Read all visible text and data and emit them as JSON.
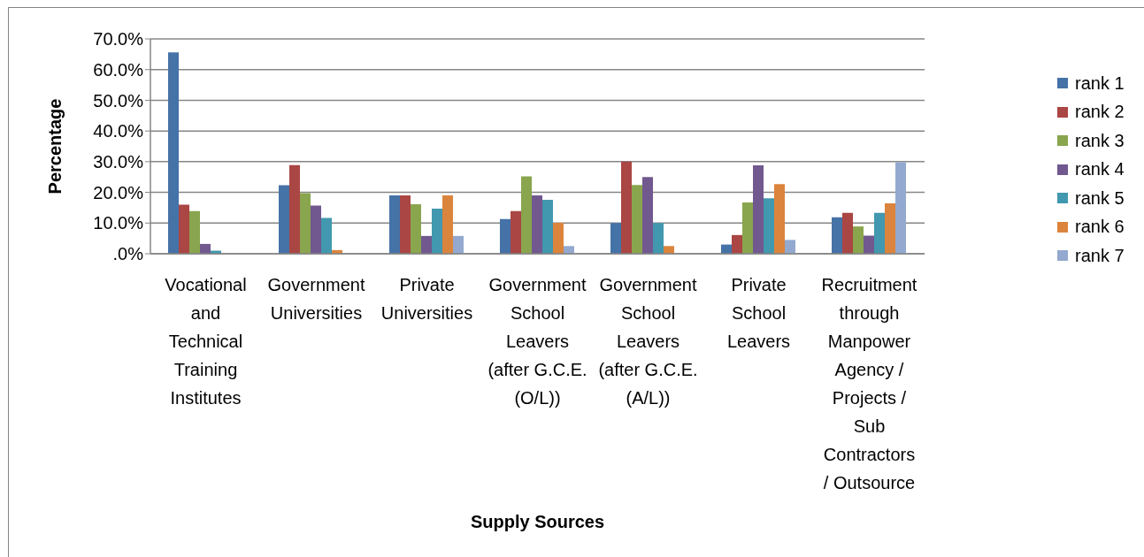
{
  "chart_data": {
    "type": "bar",
    "xlabel": "Supply Sources",
    "ylabel": "Percentage",
    "categories": [
      "Vocational and Technical Training Institutes",
      "Government Universities",
      "Private Universities",
      "Government School Leavers (after G.C.E. (O/L))",
      "Government School Leavers (after G.C.E. (A/L))",
      "Private School Leavers",
      "Recruitment through Manpower Agency / Projects / Sub Contractors / Outsource"
    ],
    "series": [
      {
        "name": "rank 1",
        "color": "#4572a7",
        "values": [
          65.6,
          22.3,
          19.0,
          11.3,
          10.0,
          3.0,
          11.9
        ]
      },
      {
        "name": "rank 2",
        "color": "#aa4643",
        "values": [
          16.0,
          28.9,
          19.0,
          13.9,
          30.0,
          6.1,
          13.3
        ]
      },
      {
        "name": "rank 3",
        "color": "#89a54e",
        "values": [
          13.9,
          19.7,
          16.1,
          25.2,
          22.4,
          16.7,
          8.9
        ]
      },
      {
        "name": "rank 4",
        "color": "#71588f",
        "values": [
          3.2,
          15.7,
          5.8,
          19.0,
          25.0,
          28.8,
          5.9
        ]
      },
      {
        "name": "rank 5",
        "color": "#4198af",
        "values": [
          1.0,
          11.7,
          14.7,
          17.6,
          10.0,
          18.1,
          13.3
        ]
      },
      {
        "name": "rank 6",
        "color": "#db843d",
        "values": [
          null,
          1.2,
          19.0,
          10.1,
          2.5,
          22.7,
          16.4
        ]
      },
      {
        "name": "rank 7",
        "color": "#93a9cf",
        "values": [
          null,
          null,
          5.8,
          2.5,
          null,
          4.5,
          29.8
        ]
      }
    ],
    "ylim": [
      0,
      70
    ],
    "yticks": [
      {
        "value": 0,
        "label": ".0%"
      },
      {
        "value": 10,
        "label": "10.0%"
      },
      {
        "value": 20,
        "label": "20.0%"
      },
      {
        "value": 30,
        "label": "30.0%"
      },
      {
        "value": 40,
        "label": "40.0%"
      },
      {
        "value": 50,
        "label": "50.0%"
      },
      {
        "value": 60,
        "label": "60.0%"
      },
      {
        "value": 70,
        "label": "70.0%"
      }
    ],
    "grid": "y",
    "legend": "right"
  }
}
